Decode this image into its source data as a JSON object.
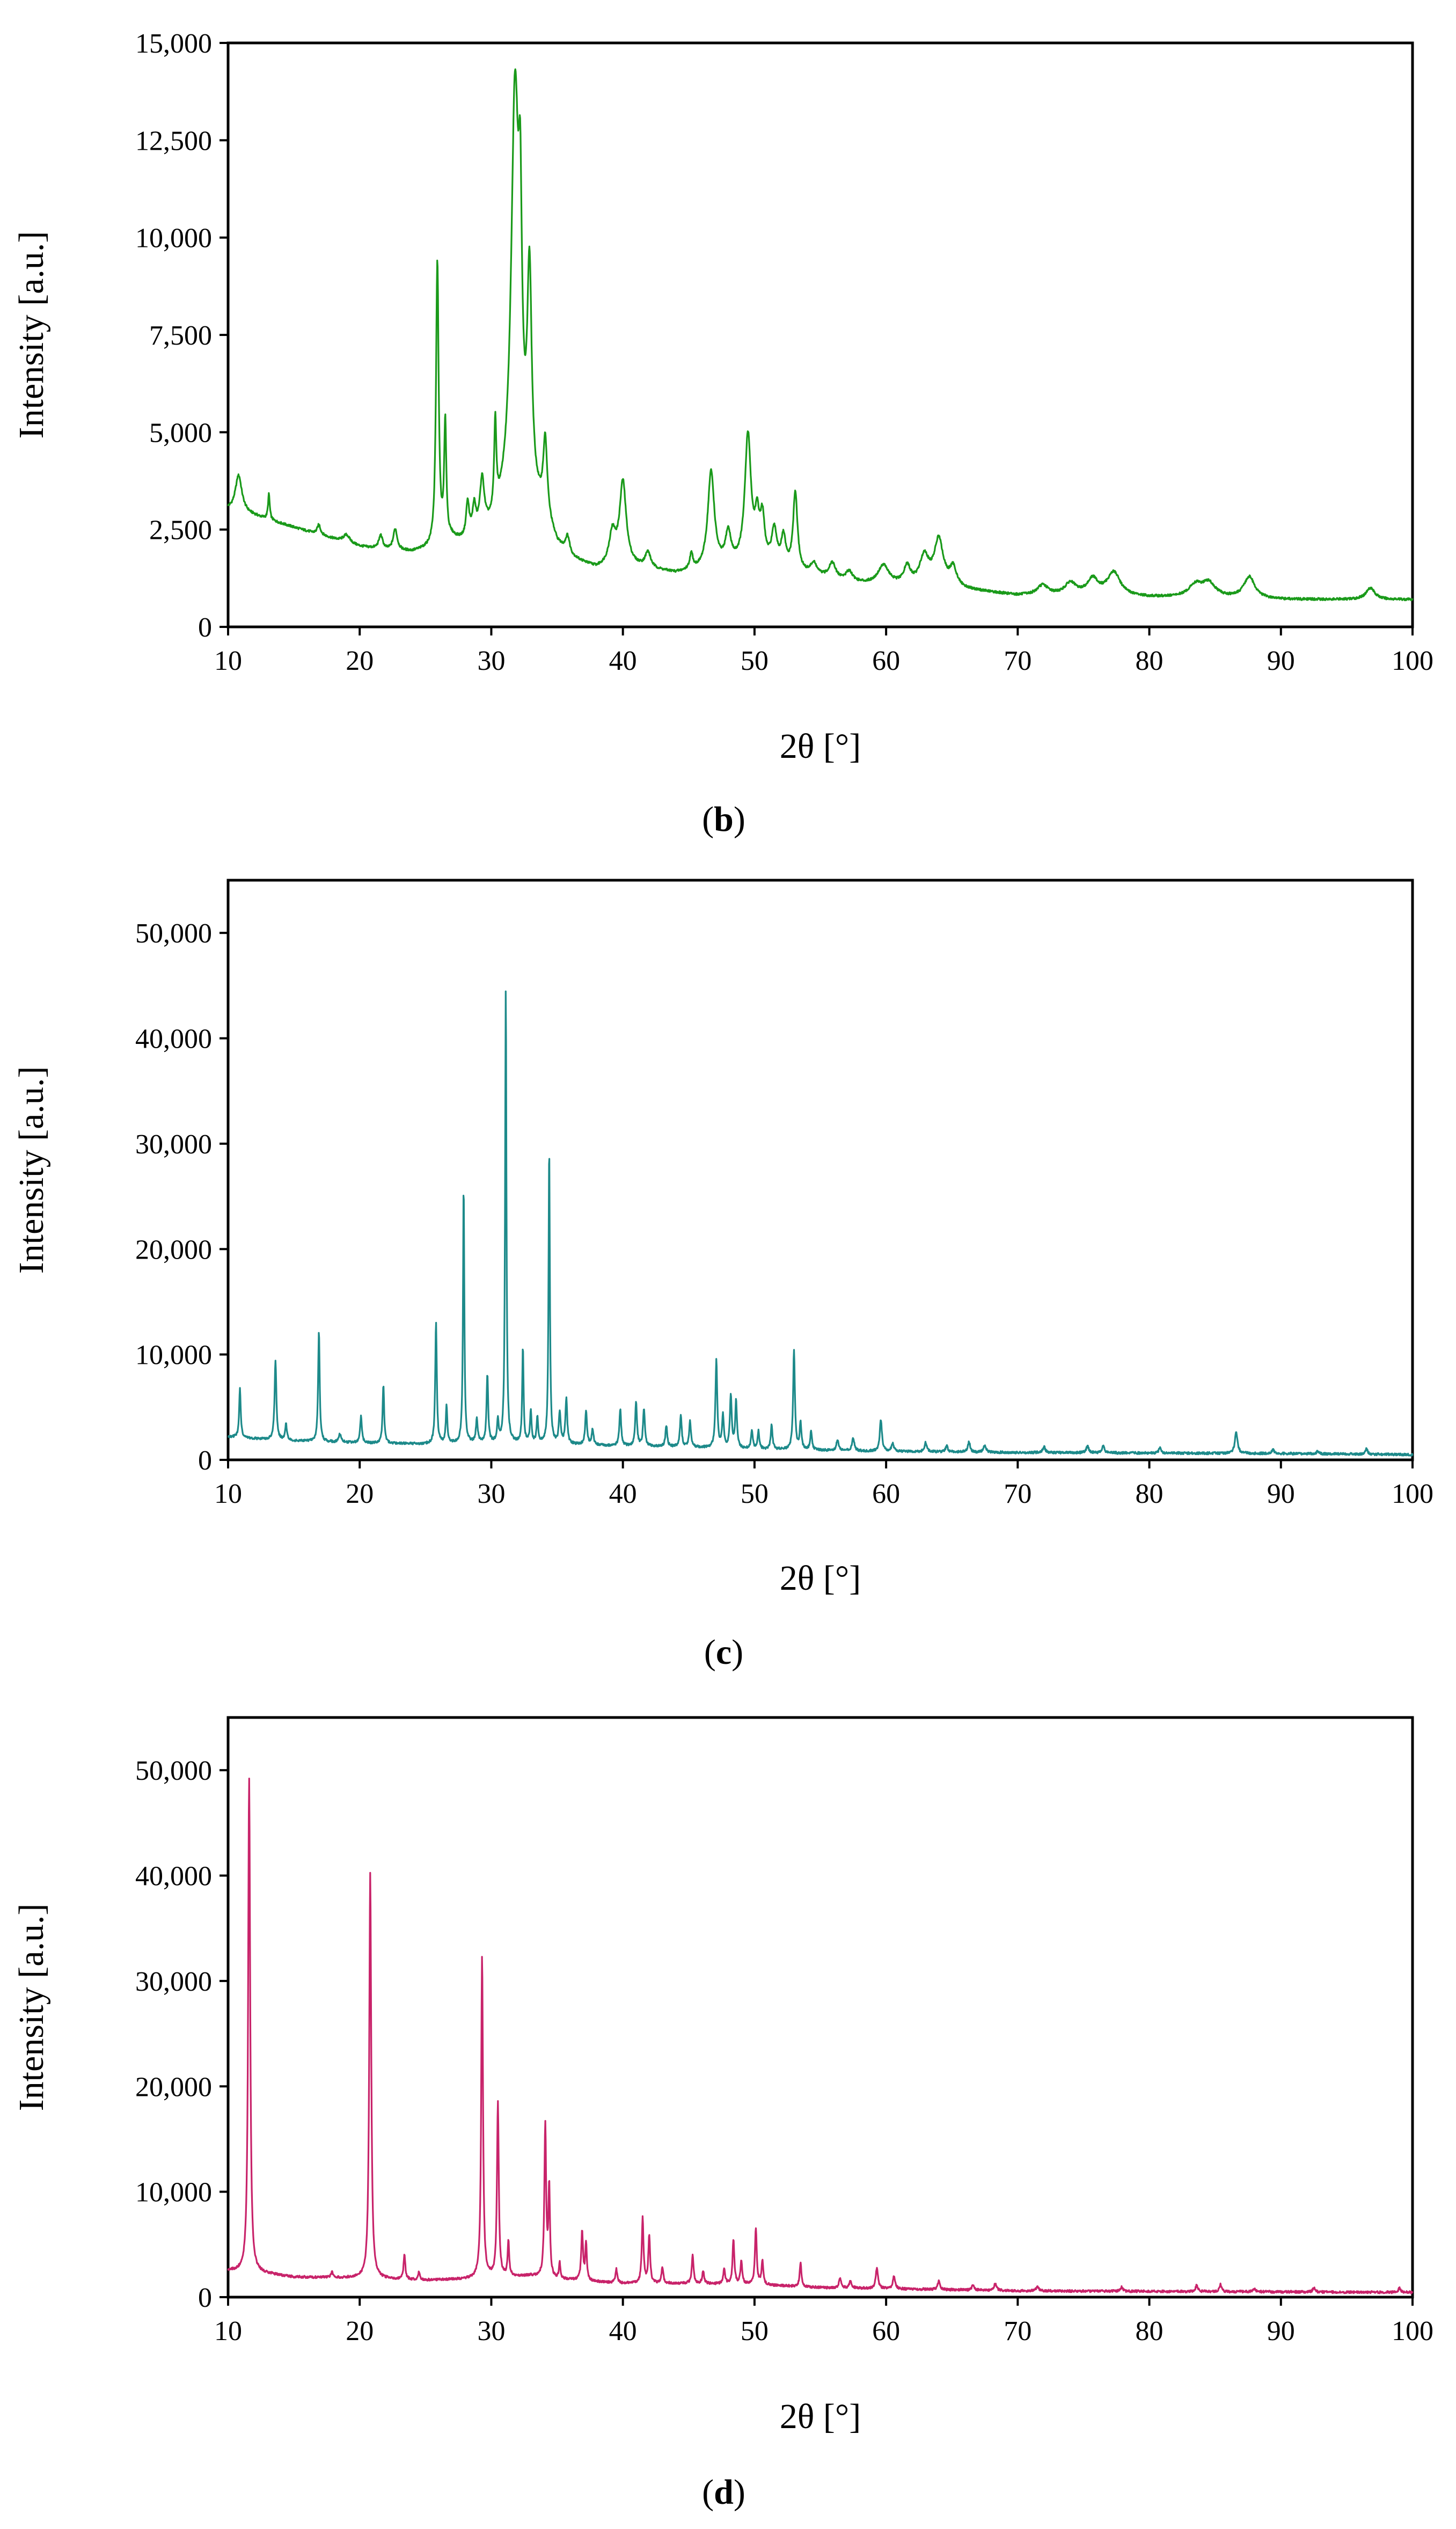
{
  "figure": {
    "panels": [
      {
        "label_open": "(",
        "label_letter": "b",
        "label_close": ")"
      },
      {
        "label_open": "(",
        "label_letter": "c",
        "label_close": ")"
      },
      {
        "label_open": "(",
        "label_letter": "d",
        "label_close": ")"
      }
    ]
  },
  "chart_data": [
    {
      "type": "line",
      "panel": "b",
      "title": "",
      "xlabel": "2θ [°]",
      "ylabel": "Intensity [a.u.]",
      "xlim": [
        10,
        100
      ],
      "ylim": [
        0,
        15000
      ],
      "xticks": [
        10,
        20,
        30,
        40,
        50,
        60,
        70,
        80,
        90,
        100
      ],
      "xtick_labels": [
        "10",
        "20",
        "30",
        "40",
        "50",
        "60",
        "70",
        "80",
        "90",
        "100"
      ],
      "yticks": [
        0,
        2500,
        5000,
        7500,
        10000,
        12500,
        15000
      ],
      "ytick_labels": [
        "0",
        "2,500",
        "5,000",
        "7,500",
        "10,000",
        "12,500",
        "15,000"
      ],
      "color": "#1a9a1a",
      "baseline": [
        [
          10,
          3000
        ],
        [
          12,
          2850
        ],
        [
          14,
          2650
        ],
        [
          16,
          2450
        ],
        [
          18,
          2250
        ],
        [
          20,
          2050
        ],
        [
          22,
          1950
        ],
        [
          24,
          1900
        ],
        [
          26,
          2000
        ],
        [
          27,
          2200
        ],
        [
          28,
          2100
        ],
        [
          30,
          2400
        ],
        [
          31,
          2800
        ],
        [
          33,
          3000
        ],
        [
          34,
          2700
        ],
        [
          35,
          2000
        ],
        [
          36,
          1700
        ],
        [
          38,
          1450
        ],
        [
          40,
          1550
        ],
        [
          42,
          1450
        ],
        [
          44,
          1350
        ],
        [
          46,
          1400
        ],
        [
          48,
          1500
        ],
        [
          50,
          1550
        ],
        [
          52,
          1450
        ],
        [
          54,
          1300
        ],
        [
          56,
          1200
        ],
        [
          58,
          1100
        ],
        [
          60,
          1050
        ],
        [
          62,
          1050
        ],
        [
          64,
          1100
        ],
        [
          66,
          950
        ],
        [
          70,
          800
        ],
        [
          75,
          800
        ],
        [
          80,
          750
        ],
        [
          85,
          750
        ],
        [
          90,
          700
        ],
        [
          95,
          700
        ],
        [
          100,
          700
        ]
      ],
      "peaks": [
        [
          10.8,
          950,
          0.3
        ],
        [
          13.1,
          650,
          0.08
        ],
        [
          16.9,
          250,
          0.15
        ],
        [
          19,
          200,
          0.3
        ],
        [
          21.6,
          350,
          0.18
        ],
        [
          22.7,
          550,
          0.18
        ],
        [
          25.9,
          7300,
          0.12
        ],
        [
          26.5,
          3000,
          0.1
        ],
        [
          28.2,
          900,
          0.15
        ],
        [
          28.7,
          700,
          0.15
        ],
        [
          29.3,
          1300,
          0.2
        ],
        [
          30.3,
          2300,
          0.1
        ],
        [
          31.8,
          10600,
          0.35
        ],
        [
          32.2,
          5000,
          0.15
        ],
        [
          32.9,
          5500,
          0.2
        ],
        [
          34.1,
          1900,
          0.18
        ],
        [
          35.8,
          450,
          0.2
        ],
        [
          39.2,
          800,
          0.3
        ],
        [
          40.0,
          2100,
          0.3
        ],
        [
          41.9,
          400,
          0.25
        ],
        [
          45.2,
          400,
          0.15
        ],
        [
          46.7,
          2500,
          0.3
        ],
        [
          48.0,
          800,
          0.25
        ],
        [
          49.5,
          3300,
          0.28
        ],
        [
          50.2,
          1000,
          0.2
        ],
        [
          50.6,
          1100,
          0.2
        ],
        [
          51.5,
          900,
          0.25
        ],
        [
          52.2,
          750,
          0.2
        ],
        [
          53.1,
          2000,
          0.2
        ],
        [
          54.5,
          300,
          0.3
        ],
        [
          55.9,
          400,
          0.3
        ],
        [
          57.2,
          250,
          0.3
        ],
        [
          59.8,
          500,
          0.5
        ],
        [
          61.6,
          450,
          0.3
        ],
        [
          62.9,
          700,
          0.4
        ],
        [
          64.0,
          1100,
          0.4
        ],
        [
          65.1,
          450,
          0.3
        ],
        [
          71.9,
          250,
          0.5
        ],
        [
          74.0,
          300,
          0.5
        ],
        [
          75.7,
          400,
          0.5
        ],
        [
          77.3,
          600,
          0.6
        ],
        [
          83.5,
          300,
          0.6
        ],
        [
          84.5,
          350,
          0.6
        ],
        [
          87.6,
          550,
          0.5
        ],
        [
          96.8,
          300,
          0.4
        ]
      ]
    },
    {
      "type": "line",
      "panel": "c",
      "title": "",
      "xlabel": "2θ [°]",
      "ylabel": "Intensity [a.u.]",
      "xlim": [
        10,
        100
      ],
      "ylim": [
        0,
        55000
      ],
      "xticks": [
        10,
        20,
        30,
        40,
        50,
        60,
        70,
        80,
        90,
        100
      ],
      "xtick_labels": [
        "10",
        "20",
        "30",
        "40",
        "50",
        "60",
        "70",
        "80",
        "90",
        "100"
      ],
      "yticks": [
        0,
        10000,
        20000,
        30000,
        40000,
        50000
      ],
      "ytick_labels": [
        "0",
        "10,000",
        "20,000",
        "30,000",
        "40,000",
        "50,000"
      ],
      "color": "#1d8a8a",
      "baseline": [
        [
          10,
          2200
        ],
        [
          12,
          2000
        ],
        [
          15,
          1800
        ],
        [
          20,
          1600
        ],
        [
          25,
          1500
        ],
        [
          30,
          1600
        ],
        [
          35,
          1500
        ],
        [
          40,
          1300
        ],
        [
          45,
          1200
        ],
        [
          50,
          1000
        ],
        [
          55,
          900
        ],
        [
          60,
          800
        ],
        [
          70,
          700
        ],
        [
          80,
          650
        ],
        [
          90,
          600
        ],
        [
          100,
          500
        ]
      ],
      "peaks": [
        [
          10.9,
          4700,
          0.07
        ],
        [
          13.6,
          7500,
          0.08
        ],
        [
          14.4,
          1500,
          0.08
        ],
        [
          16.9,
          10500,
          0.07
        ],
        [
          18.5,
          800,
          0.1
        ],
        [
          20.1,
          2500,
          0.08
        ],
        [
          21.8,
          5500,
          0.07
        ],
        [
          25.8,
          11500,
          0.07
        ],
        [
          26.6,
          3500,
          0.07
        ],
        [
          27.9,
          24500,
          0.06
        ],
        [
          28.9,
          2200,
          0.08
        ],
        [
          29.7,
          6500,
          0.07
        ],
        [
          30.5,
          2000,
          0.07
        ],
        [
          31.1,
          43200,
          0.06
        ],
        [
          32.4,
          9200,
          0.06
        ],
        [
          33.0,
          3000,
          0.07
        ],
        [
          33.5,
          2500,
          0.07
        ],
        [
          34.4,
          28200,
          0.06
        ],
        [
          35.2,
          3000,
          0.08
        ],
        [
          35.7,
          4300,
          0.08
        ],
        [
          37.2,
          3200,
          0.08
        ],
        [
          37.7,
          1500,
          0.08
        ],
        [
          39.8,
          3500,
          0.08
        ],
        [
          41.0,
          4200,
          0.08
        ],
        [
          41.6,
          3600,
          0.08
        ],
        [
          43.3,
          2000,
          0.08
        ],
        [
          44.4,
          3000,
          0.08
        ],
        [
          45.1,
          2500,
          0.08
        ],
        [
          47.1,
          8300,
          0.08
        ],
        [
          47.6,
          3000,
          0.08
        ],
        [
          48.2,
          5000,
          0.08
        ],
        [
          48.6,
          4500,
          0.08
        ],
        [
          49.8,
          1700,
          0.08
        ],
        [
          50.3,
          1700,
          0.08
        ],
        [
          51.3,
          2300,
          0.08
        ],
        [
          53.0,
          9500,
          0.08
        ],
        [
          53.5,
          2500,
          0.08
        ],
        [
          54.3,
          1800,
          0.08
        ],
        [
          56.3,
          1000,
          0.1
        ],
        [
          57.5,
          1200,
          0.1
        ],
        [
          59.6,
          3000,
          0.1
        ],
        [
          60.5,
          800,
          0.1
        ],
        [
          63.0,
          900,
          0.1
        ],
        [
          64.6,
          600,
          0.1
        ],
        [
          66.3,
          1000,
          0.1
        ],
        [
          67.5,
          700,
          0.1
        ],
        [
          72.0,
          600,
          0.1
        ],
        [
          75.3,
          700,
          0.1
        ],
        [
          76.5,
          700,
          0.1
        ],
        [
          80.8,
          500,
          0.1
        ],
        [
          86.6,
          2000,
          0.12
        ],
        [
          89.4,
          400,
          0.1
        ],
        [
          92.8,
          300,
          0.1
        ],
        [
          96.5,
          500,
          0.1
        ]
      ]
    },
    {
      "type": "line",
      "panel": "d",
      "title": "",
      "xlabel": "2θ [°]",
      "ylabel": "Intensity [a.u.]",
      "xlim": [
        10,
        100
      ],
      "ylim": [
        0,
        55000
      ],
      "xticks": [
        10,
        20,
        30,
        40,
        50,
        60,
        70,
        80,
        90,
        100
      ],
      "xtick_labels": [
        "10",
        "20",
        "30",
        "40",
        "50",
        "60",
        "70",
        "80",
        "90",
        "100"
      ],
      "yticks": [
        0,
        10000,
        20000,
        30000,
        40000,
        50000
      ],
      "ytick_labels": [
        "0",
        "10,000",
        "20,000",
        "30,000",
        "40,000",
        "50,000"
      ],
      "color": "#c8236a",
      "baseline": [
        [
          10,
          2500
        ],
        [
          11,
          2400
        ],
        [
          13,
          2200
        ],
        [
          15,
          1900
        ],
        [
          20,
          1800
        ],
        [
          25,
          1600
        ],
        [
          28,
          1700
        ],
        [
          30,
          1900
        ],
        [
          33,
          2000
        ],
        [
          35,
          1700
        ],
        [
          40,
          1300
        ],
        [
          45,
          1300
        ],
        [
          50,
          1200
        ],
        [
          55,
          900
        ],
        [
          60,
          800
        ],
        [
          70,
          600
        ],
        [
          80,
          550
        ],
        [
          90,
          500
        ],
        [
          100,
          450
        ]
      ],
      "peaks": [
        [
          11.6,
          47000,
          0.09
        ],
        [
          17.9,
          500,
          0.1
        ],
        [
          20.8,
          38500,
          0.09
        ],
        [
          23.4,
          2300,
          0.08
        ],
        [
          24.5,
          700,
          0.08
        ],
        [
          29.3,
          30600,
          0.08
        ],
        [
          30.5,
          16500,
          0.08
        ],
        [
          31.3,
          3300,
          0.07
        ],
        [
          34.1,
          14500,
          0.08
        ],
        [
          34.4,
          8500,
          0.07
        ],
        [
          35.2,
          1500,
          0.07
        ],
        [
          36.9,
          4700,
          0.08
        ],
        [
          37.2,
          3500,
          0.07
        ],
        [
          39.5,
          1300,
          0.08
        ],
        [
          41.5,
          6200,
          0.08
        ],
        [
          42.0,
          4500,
          0.08
        ],
        [
          43.0,
          1500,
          0.08
        ],
        [
          45.3,
          2800,
          0.08
        ],
        [
          46.1,
          1200,
          0.08
        ],
        [
          47.7,
          1500,
          0.08
        ],
        [
          48.4,
          4200,
          0.08
        ],
        [
          49.0,
          2200,
          0.08
        ],
        [
          50.1,
          5400,
          0.08
        ],
        [
          50.6,
          2200,
          0.08
        ],
        [
          53.5,
          2300,
          0.08
        ],
        [
          56.5,
          900,
          0.1
        ],
        [
          57.3,
          700,
          0.1
        ],
        [
          59.3,
          2000,
          0.1
        ],
        [
          60.6,
          1200,
          0.1
        ],
        [
          64.0,
          800,
          0.1
        ],
        [
          66.6,
          500,
          0.1
        ],
        [
          68.3,
          700,
          0.1
        ],
        [
          71.5,
          500,
          0.1
        ],
        [
          77.9,
          400,
          0.1
        ],
        [
          83.6,
          600,
          0.1
        ],
        [
          85.4,
          700,
          0.1
        ],
        [
          88.0,
          300,
          0.1
        ],
        [
          92.5,
          400,
          0.1
        ],
        [
          99.0,
          400,
          0.1
        ]
      ]
    }
  ]
}
